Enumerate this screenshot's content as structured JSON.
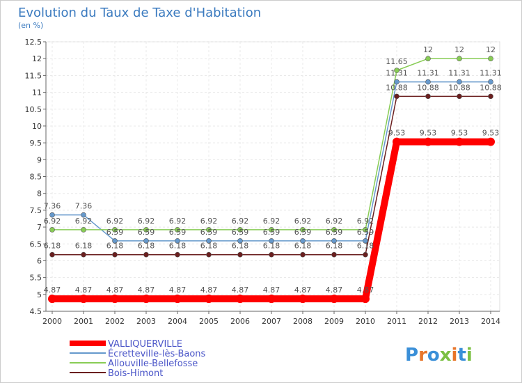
{
  "chart_data": {
    "type": "line",
    "title": "Evolution du Taux de Taxe d'Habitation",
    "subtitle": "(en %)",
    "x": [
      "2000",
      "2001",
      "2002",
      "2003",
      "2004",
      "2005",
      "2006",
      "2007",
      "2008",
      "2009",
      "2010",
      "2011",
      "2012",
      "2013",
      "2014"
    ],
    "yticks": [
      "4.5",
      "5",
      "5.5",
      "6",
      "6.5",
      "7",
      "7.5",
      "8",
      "8.5",
      "9",
      "9.5",
      "10",
      "10.5",
      "11",
      "11.5",
      "12",
      "12.5"
    ],
    "ylim": [
      4.5,
      12.5
    ],
    "series": [
      {
        "name": "VALLIQUERVILLE",
        "color": "#ff0000",
        "values": [
          4.87,
          4.87,
          4.87,
          4.87,
          4.87,
          4.87,
          4.87,
          4.87,
          4.87,
          4.87,
          4.87,
          9.53,
          9.53,
          9.53,
          9.53
        ],
        "labels": [
          "4.87",
          "4.87",
          "4.87",
          "4.87",
          "4.87",
          "4.87",
          "4.87",
          "4.87",
          "4.87",
          "4.87",
          "4.87",
          "9.53",
          "9.53",
          "9.53",
          "9.53"
        ]
      },
      {
        "name": "Écretteville-lès-Baons",
        "color": "#6699cc",
        "values": [
          7.36,
          7.36,
          6.59,
          6.59,
          6.59,
          6.59,
          6.59,
          6.59,
          6.59,
          6.59,
          6.59,
          11.31,
          11.31,
          11.31,
          11.31
        ],
        "labels": [
          "7.36",
          "7.36",
          "6.59",
          "6.59",
          "6.59",
          "6.59",
          "6.59",
          "6.59",
          "6.59",
          "6.59",
          "6.59",
          "11.31",
          "11.31",
          "11.31",
          "11.31"
        ]
      },
      {
        "name": "Allouville-Bellefosse",
        "color": "#88cc55",
        "values": [
          6.92,
          6.92,
          6.92,
          6.92,
          6.92,
          6.92,
          6.92,
          6.92,
          6.92,
          6.92,
          6.92,
          11.65,
          12,
          12,
          12
        ],
        "labels": [
          "6.92",
          "6.92",
          "6.92",
          "6.92",
          "6.92",
          "6.92",
          "6.92",
          "6.92",
          "6.92",
          "6.92",
          "6.92",
          "11.65",
          "12",
          "12",
          "12"
        ]
      },
      {
        "name": "Bois-Himont",
        "color": "#6b1f1f",
        "values": [
          6.18,
          6.18,
          6.18,
          6.18,
          6.18,
          6.18,
          6.18,
          6.18,
          6.18,
          6.18,
          6.18,
          10.88,
          10.88,
          10.88,
          10.88
        ],
        "labels": [
          "6.18",
          "6.18",
          "6.18",
          "6.18",
          "6.18",
          "6.18",
          "6.18",
          "6.18",
          "6.18",
          "6.18",
          "6.18",
          "10.88",
          "10.88",
          "10.88",
          "10.88"
        ]
      }
    ],
    "legend_position": "bottom-left"
  },
  "brand": {
    "text": "Proxiti"
  }
}
